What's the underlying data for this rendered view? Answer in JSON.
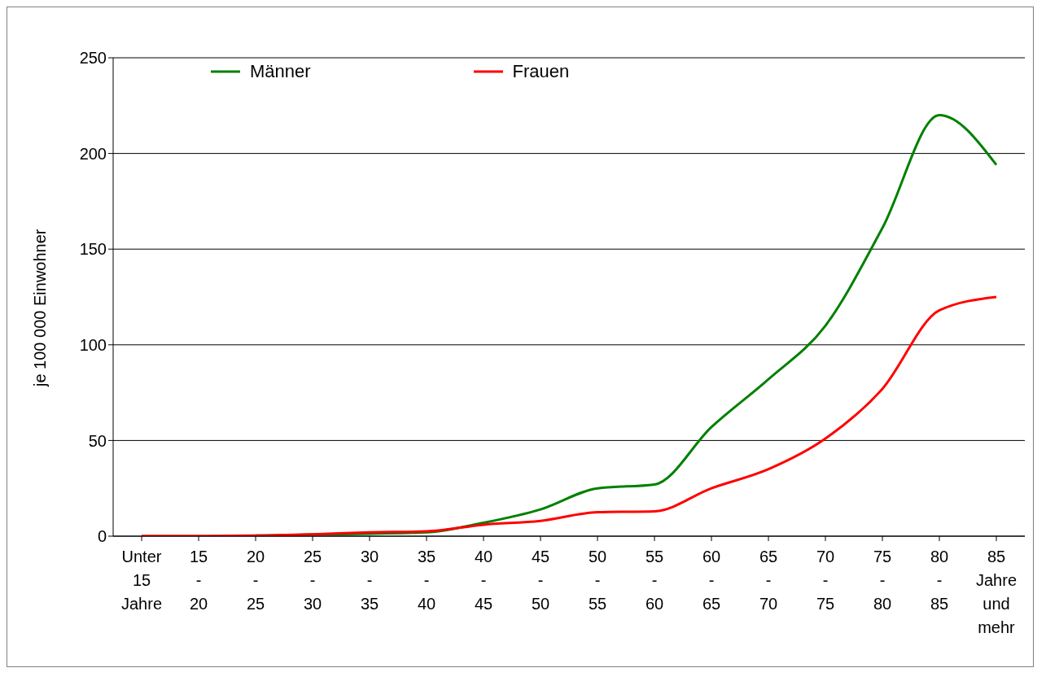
{
  "chart_data": {
    "type": "line",
    "ylabel": "je 100 000 Einwohner",
    "categories": [
      "Unter 15 Jahre",
      "15 - 20",
      "20 - 25",
      "25 - 30",
      "30 - 35",
      "35 - 40",
      "40 - 45",
      "45 - 50",
      "50 - 55",
      "55 - 60",
      "60 - 65",
      "65 - 70",
      "70 - 75",
      "75 - 80",
      "80 - 85",
      "85 Jahre und mehr"
    ],
    "series": [
      {
        "name": "Männer",
        "color": "#008000",
        "values": [
          null,
          null,
          0.3,
          0.8,
          1.3,
          2,
          7,
          14,
          25,
          27,
          57,
          82,
          110,
          161,
          220,
          194
        ]
      },
      {
        "name": "Frauen",
        "color": "#ff0000",
        "values": [
          0.1,
          0.1,
          0.3,
          1,
          2,
          2.5,
          6,
          8,
          12.5,
          13,
          25,
          35,
          51,
          77,
          118,
          125
        ]
      }
    ],
    "ylim": [
      0,
      250
    ],
    "yticks": [
      0,
      50,
      100,
      150,
      200,
      250
    ],
    "grid": "y",
    "legend": "top left",
    "marker": "none",
    "line_style": "solid"
  }
}
